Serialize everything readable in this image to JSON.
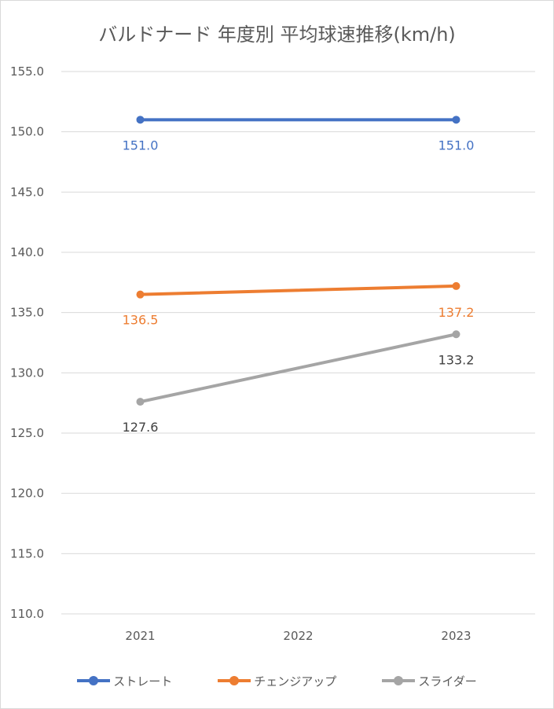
{
  "chart_data": {
    "type": "line",
    "title": "バルドナード 年度別 平均球速推移(km/h)",
    "categories": [
      "2021",
      "2022",
      "2023"
    ],
    "ylim": [
      110.0,
      155.0
    ],
    "yticks": [
      "110.0",
      "115.0",
      "120.0",
      "125.0",
      "130.0",
      "135.0",
      "140.0",
      "145.0",
      "150.0",
      "155.0"
    ],
    "grid": true,
    "legend_position": "bottom",
    "series": [
      {
        "name": "ストレート",
        "color": "#4472c4",
        "values": [
          151.0,
          null,
          151.0
        ],
        "labels": [
          "151.0",
          null,
          "151.0"
        ],
        "label_side": [
          "below",
          null,
          "below"
        ]
      },
      {
        "name": "チェンジアップ",
        "color": "#ed7d31",
        "values": [
          136.5,
          null,
          137.2
        ],
        "labels": [
          "136.5",
          null,
          "137.2"
        ],
        "label_side": [
          "below",
          null,
          "above"
        ]
      },
      {
        "name": "スライダー",
        "color": "#a5a5a5",
        "label_color": "#404040",
        "values": [
          127.6,
          null,
          133.2
        ],
        "labels": [
          "127.6",
          null,
          "133.2"
        ],
        "label_side": [
          "below",
          null,
          "below"
        ]
      }
    ]
  }
}
